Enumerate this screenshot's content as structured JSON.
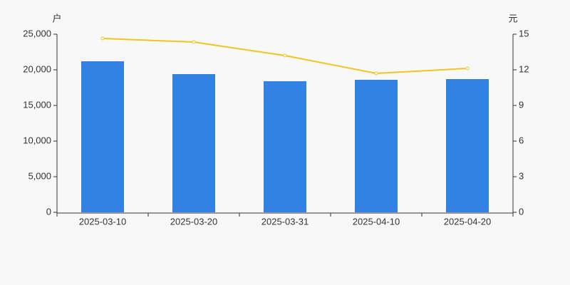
{
  "chart_data": {
    "type": "bar",
    "y_label": "户",
    "y2_label": "元",
    "categories": [
      "2025-03-10",
      "2025-03-20",
      "2025-03-31",
      "2025-04-10",
      "2025-04-20"
    ],
    "series": [
      {
        "type": "bar",
        "color": "#3282e4",
        "values": [
          21200,
          19400,
          18400,
          18600,
          18700
        ]
      },
      {
        "type": "line",
        "axis": "y2",
        "color": "#f5c31b",
        "values": [
          14.64,
          14.34,
          13.2,
          11.7,
          12.12
        ]
      }
    ],
    "ylim": [
      0,
      25000
    ],
    "yticks": [
      0,
      {
        "value": 5000,
        "label": "5,000"
      },
      {
        "value": 10000,
        "label": "10,000"
      },
      {
        "value": 15000,
        "label": "15,000"
      },
      {
        "value": 20000,
        "label": "20,000"
      },
      {
        "value": 25000,
        "label": "25,000"
      }
    ],
    "y2lim": [
      0,
      15
    ],
    "y2ticks": [
      0,
      3,
      6,
      9,
      12,
      15
    ],
    "grid": false
  }
}
